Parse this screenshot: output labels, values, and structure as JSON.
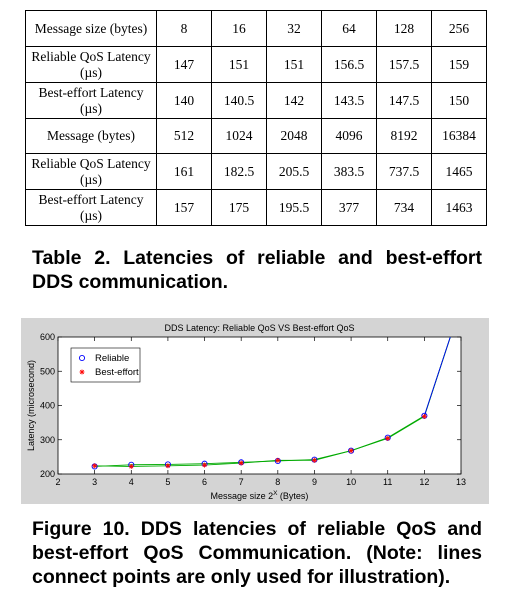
{
  "table": {
    "rows": [
      {
        "label": "Message size (bytes)",
        "cells": [
          "8",
          "16",
          "32",
          "64",
          "128",
          "256"
        ]
      },
      {
        "label": "Reliable QoS Latency (µs)",
        "cells": [
          "147",
          "151",
          "151",
          "156.5",
          "157.5",
          "159"
        ]
      },
      {
        "label": "Best-effort Latency (µs)",
        "cells": [
          "140",
          "140.5",
          "142",
          "143.5",
          "147.5",
          "150"
        ]
      },
      {
        "label": "Message (bytes)",
        "cells": [
          "512",
          "1024",
          "2048",
          "4096",
          "8192",
          "16384"
        ]
      },
      {
        "label": "Reliable QoS Latency (µs)",
        "cells": [
          "161",
          "182.5",
          "205.5",
          "383.5",
          "737.5",
          "1465"
        ]
      },
      {
        "label": "Best-effort Latency (µs)",
        "cells": [
          "157",
          "175",
          "195.5",
          "377",
          "734",
          "1463"
        ]
      }
    ]
  },
  "table_caption": "Table 2. Latencies of reliable and best-effort DDS communication.",
  "figure_caption": "Figure 10. DDS latencies of reliable QoS and best-effort QoS Communication. (Note: lines connect points are only used for illustration).",
  "chart_data": {
    "type": "line",
    "title": "DDS Latency: Reliable QoS VS Best-effort QoS",
    "xlabel": "Message size 2^X (Bytes)",
    "ylabel": "Latency (microsecond)",
    "xlim": [
      2,
      13
    ],
    "ylim": [
      200,
      600
    ],
    "xticks": [
      2,
      3,
      4,
      5,
      6,
      7,
      8,
      9,
      10,
      11,
      12,
      13
    ],
    "yticks": [
      200,
      300,
      400,
      500,
      600
    ],
    "x": [
      3,
      4,
      5,
      6,
      7,
      8,
      9,
      10,
      11,
      12,
      13
    ],
    "series": [
      {
        "name": "Reliable",
        "color": "#0000ff",
        "marker": "circle",
        "values": [
          222,
          227,
          228,
          230,
          234,
          238,
          242,
          268,
          306,
          370,
          695
        ]
      },
      {
        "name": "Best-effort",
        "color": "#ff0000",
        "marker": "star",
        "values": [
          224,
          222,
          224,
          226,
          232,
          240,
          240,
          268,
          304,
          368,
          695
        ]
      }
    ],
    "series_line_color": "#00aa00",
    "legend": "top-left",
    "grid": false
  }
}
